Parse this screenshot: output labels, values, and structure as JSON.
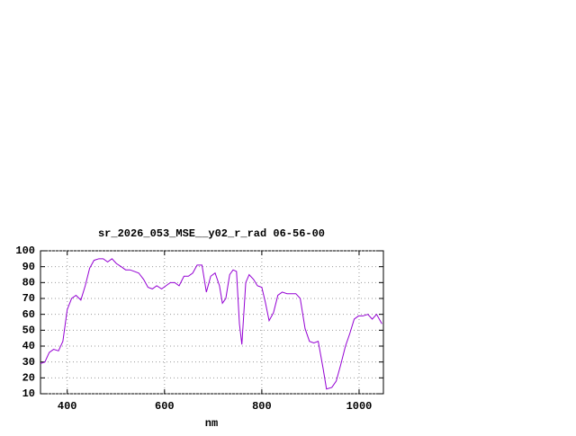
{
  "chart_data": {
    "type": "line",
    "title": "sr_2026_053_MSE__y02_r_rad 06-56-00",
    "x_label": "nm",
    "x": [
      345,
      354,
      363,
      372,
      382,
      391,
      400,
      409,
      418,
      428,
      437,
      446,
      455,
      465,
      474,
      483,
      492,
      501,
      511,
      520,
      529,
      538,
      547,
      557,
      566,
      575,
      584,
      594,
      603,
      612,
      621,
      630,
      640,
      649,
      658,
      667,
      677,
      686,
      695,
      704,
      713,
      719,
      726,
      734,
      741,
      748,
      754,
      759,
      767,
      774,
      783,
      791,
      800,
      807,
      815,
      824,
      833,
      842,
      852,
      861,
      870,
      879,
      889,
      898,
      907,
      916,
      926,
      933,
      944,
      953,
      962,
      972,
      981,
      990,
      999,
      1008,
      1018,
      1027,
      1036,
      1047
    ],
    "series": [
      {
        "color": "#9400d3",
        "values": [
          29,
          30,
          36,
          38,
          37,
          43,
          63,
          70,
          72,
          69,
          78,
          89,
          94,
          95,
          95,
          93,
          95,
          92,
          90,
          88,
          88,
          87,
          86,
          82,
          77,
          76,
          78,
          76,
          78,
          80,
          80,
          78,
          84,
          84,
          86,
          91,
          91,
          74,
          84,
          86,
          78,
          67,
          70,
          85,
          88,
          87,
          54,
          41,
          80,
          85,
          82,
          78,
          77,
          68,
          56,
          61,
          72,
          74,
          73,
          73,
          73,
          70,
          51,
          43,
          42,
          43,
          26,
          13,
          14,
          18,
          28,
          40,
          48,
          57,
          59,
          59,
          60,
          57,
          60,
          54
        ]
      }
    ],
    "xlim": [
      345,
      1050
    ],
    "ylim": [
      10,
      100
    ],
    "xticks": [
      400,
      600,
      800,
      1000
    ],
    "yticks": [
      10,
      20,
      30,
      40,
      50,
      60,
      70,
      80,
      90,
      100
    ],
    "grid": true
  }
}
